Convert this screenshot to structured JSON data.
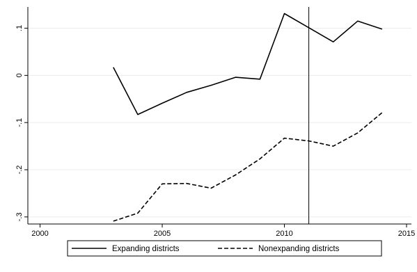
{
  "chart_data": {
    "type": "line",
    "title": "",
    "xlabel": "",
    "ylabel": "",
    "xlim": [
      1999.5,
      2015.2
    ],
    "ylim": [
      -0.315,
      0.145
    ],
    "x_ticks": [
      2000,
      2005,
      2010,
      2015
    ],
    "x_tick_labels": [
      "2000",
      "2005",
      "2010",
      "2015"
    ],
    "y_ticks": [
      -0.3,
      -0.2,
      -0.1,
      0,
      0.1
    ],
    "y_tick_labels": [
      "-.3",
      "-.2",
      "-.1",
      "0",
      ".1"
    ],
    "grid": true,
    "vertical_reference_line": 2011,
    "legend_position": "bottom",
    "series": [
      {
        "name": "Expanding districts",
        "style": "solid",
        "color": "#000000",
        "x": [
          2003,
          2004,
          2005,
          2006,
          2007,
          2008,
          2009,
          2010,
          2011,
          2012,
          2013,
          2014
        ],
        "y": [
          0.017,
          -0.083,
          -0.059,
          -0.036,
          -0.021,
          -0.004,
          -0.008,
          0.131,
          0.101,
          0.071,
          0.115,
          0.098
        ]
      },
      {
        "name": "Nonexpanding districts",
        "style": "dashed",
        "color": "#000000",
        "x": [
          2003,
          2004,
          2005,
          2006,
          2007,
          2008,
          2009,
          2010,
          2011,
          2012,
          2013,
          2014
        ],
        "y": [
          -0.309,
          -0.292,
          -0.23,
          -0.229,
          -0.239,
          -0.211,
          -0.177,
          -0.133,
          -0.139,
          -0.15,
          -0.122,
          -0.079
        ]
      }
    ]
  }
}
